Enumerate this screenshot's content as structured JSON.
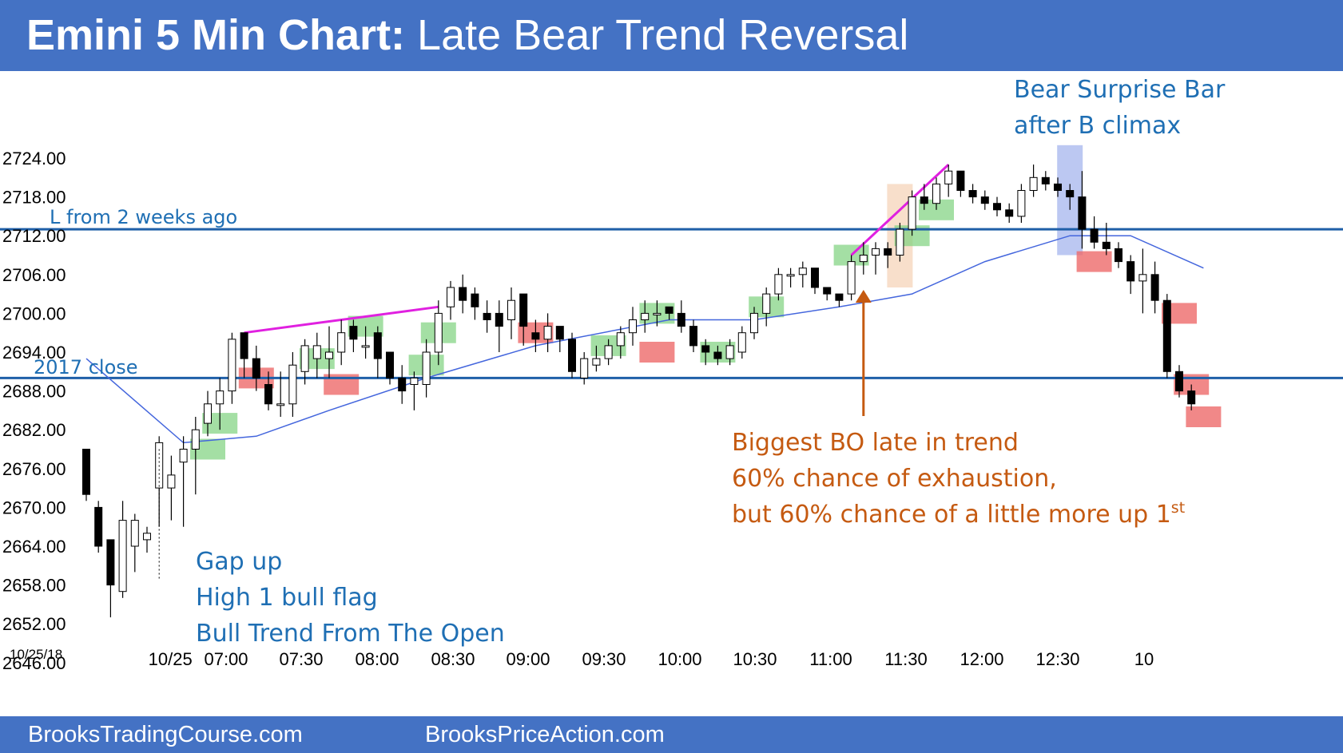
{
  "header": {
    "title_bold": "Emini 5 Min Chart:",
    "title_rest": "Late Bear Trend Reversal"
  },
  "footer": {
    "left": "BrooksTradingCourse.com",
    "right": "BrooksPriceAction.com"
  },
  "colors": {
    "header_bg": "#4472c4",
    "bull_box": "#7ed27e",
    "bear_box": "#ee6a6a",
    "ema_line": "#4466dd",
    "support_line": "#1f5fa8",
    "trendline": "#e020e0",
    "annotation_blue": "#1f6fb4",
    "annotation_orange": "#c55a11"
  },
  "chart_data": {
    "type": "candlestick",
    "date_label": "10/25/18",
    "y_ticks": [
      2724,
      2718,
      2712,
      2706,
      2700,
      2694,
      2688,
      2682,
      2676,
      2670,
      2664,
      2658,
      2652,
      2646
    ],
    "y_tick_labels": [
      "2724.00",
      "2718.00",
      "2712.00",
      "2706.00",
      "2700.00",
      "2694.00",
      "2688.00",
      "2682.00",
      "2676.00",
      "2670.00",
      "2664.00",
      "2658.00",
      "2652.00",
      "2646.00"
    ],
    "x_labels": [
      "10/25",
      "07:00",
      "07:30",
      "08:00",
      "08:30",
      "09:00",
      "09:30",
      "10:00",
      "10:30",
      "11:00",
      "11:30",
      "12:00",
      "12:30",
      "10"
    ],
    "ylim": [
      2643,
      2733
    ],
    "candles": [
      [
        2679,
        2679,
        2671,
        2672
      ],
      [
        2670,
        2671,
        2663,
        2664
      ],
      [
        2665,
        2665,
        2653,
        2658
      ],
      [
        2657,
        2671,
        2656,
        2668
      ],
      [
        2664,
        2669,
        2660,
        2668
      ],
      [
        2665,
        2667,
        2663,
        2666
      ],
      [
        2673,
        2681,
        2667,
        2680
      ],
      [
        2673,
        2678,
        2668,
        2675
      ],
      [
        2677,
        2681,
        2667,
        2679
      ],
      [
        2679,
        2684,
        2672,
        2682
      ],
      [
        2683,
        2688,
        2681,
        2686
      ],
      [
        2686,
        2690,
        2682,
        2688
      ],
      [
        2688,
        2697,
        2686,
        2696
      ],
      [
        2697,
        2697,
        2690,
        2693
      ],
      [
        2693,
        2695,
        2688,
        2690
      ],
      [
        2689,
        2691,
        2685,
        2686
      ],
      [
        2686,
        2691,
        2684,
        2686
      ],
      [
        2686,
        2694,
        2684,
        2692
      ],
      [
        2691,
        2696,
        2689,
        2695
      ],
      [
        2693,
        2697,
        2690,
        2695
      ],
      [
        2693,
        2698,
        2690,
        2694
      ],
      [
        2694,
        2699,
        2692,
        2697
      ],
      [
        2698,
        2699,
        2694,
        2696
      ],
      [
        2695,
        2698,
        2693,
        2695
      ],
      [
        2697,
        2698,
        2690,
        2693
      ],
      [
        2694,
        2694,
        2689,
        2690
      ],
      [
        2690,
        2692,
        2686,
        2688
      ],
      [
        2689,
        2691,
        2685,
        2690
      ],
      [
        2689,
        2696,
        2687,
        2694
      ],
      [
        2694,
        2702,
        2692,
        2700
      ],
      [
        2701,
        2705,
        2699,
        2704
      ],
      [
        2704,
        2706,
        2700,
        2702
      ],
      [
        2703,
        2704,
        2699,
        2701
      ],
      [
        2700,
        2702,
        2697,
        2699
      ],
      [
        2700,
        2702,
        2694,
        2698
      ],
      [
        2699,
        2704,
        2696,
        2702
      ],
      [
        2703,
        2703,
        2695,
        2698
      ],
      [
        2697,
        2699,
        2694,
        2696
      ],
      [
        2696,
        2700,
        2694,
        2698
      ],
      [
        2698,
        2698,
        2694,
        2696
      ],
      [
        2696,
        2697,
        2690,
        2691
      ],
      [
        2690,
        2694,
        2689,
        2693
      ],
      [
        2692,
        2695,
        2691,
        2693
      ],
      [
        2693,
        2696,
        2692,
        2695
      ],
      [
        2695,
        2698,
        2693,
        2697
      ],
      [
        2697,
        2701,
        2695,
        2699
      ],
      [
        2699,
        2702,
        2697,
        2700
      ],
      [
        2700,
        2702,
        2698,
        2700
      ],
      [
        2701,
        2701,
        2699,
        2700
      ],
      [
        2700,
        2702,
        2697,
        2698
      ],
      [
        2698,
        2699,
        2694,
        2695
      ],
      [
        2695,
        2696,
        2692,
        2694
      ],
      [
        2694,
        2695,
        2692,
        2693
      ],
      [
        2693,
        2696,
        2692,
        2695
      ],
      [
        2694,
        2698,
        2693,
        2697
      ],
      [
        2697,
        2701,
        2696,
        2700
      ],
      [
        2700,
        2704,
        2698,
        2703
      ],
      [
        2703,
        2707,
        2702,
        2706
      ],
      [
        2706,
        2707,
        2704,
        2706
      ],
      [
        2706,
        2708,
        2704,
        2707
      ],
      [
        2707,
        2707,
        2703,
        2704
      ],
      [
        2704,
        2704,
        2702,
        2703
      ],
      [
        2703,
        2703,
        2701,
        2702
      ],
      [
        2703,
        2709,
        2702,
        2708
      ],
      [
        2708,
        2711,
        2706,
        2709
      ],
      [
        2709,
        2711,
        2706,
        2710
      ],
      [
        2710,
        2711,
        2707,
        2709
      ],
      [
        2709,
        2714,
        2708,
        2713
      ],
      [
        2713,
        2719,
        2712,
        2718
      ],
      [
        2718,
        2720,
        2716,
        2717
      ],
      [
        2717,
        2721,
        2716,
        2720
      ],
      [
        2720,
        2723,
        2718,
        2722
      ],
      [
        2722,
        2722,
        2718,
        2719
      ],
      [
        2719,
        2720,
        2717,
        2718
      ],
      [
        2718,
        2719,
        2716,
        2717
      ],
      [
        2717,
        2718,
        2715,
        2716
      ],
      [
        2716,
        2717,
        2714,
        2715
      ],
      [
        2715,
        2720,
        2714,
        2719
      ],
      [
        2719,
        2723,
        2718,
        2721
      ],
      [
        2721,
        2722,
        2719,
        2720
      ],
      [
        2720,
        2721,
        2718,
        2719
      ],
      [
        2719,
        2720,
        2716,
        2718
      ],
      [
        2718,
        2722,
        2710,
        2713
      ],
      [
        2713,
        2715,
        2710,
        2711
      ],
      [
        2711,
        2714,
        2709,
        2710
      ],
      [
        2710,
        2711,
        2707,
        2708
      ],
      [
        2708,
        2709,
        2703,
        2705
      ],
      [
        2705,
        2710,
        2700,
        2706
      ],
      [
        2706,
        2708,
        2700,
        2702
      ],
      [
        2702,
        2703,
        2690,
        2691
      ],
      [
        2691,
        2692,
        2687,
        2688
      ],
      [
        2688,
        2689,
        2685,
        2686
      ]
    ],
    "ema_points": [
      [
        2693,
        0
      ],
      [
        2680,
        8
      ],
      [
        2681,
        14
      ],
      [
        2685,
        20
      ],
      [
        2690,
        28
      ],
      [
        2695,
        37
      ],
      [
        2699,
        48
      ],
      [
        2699,
        55
      ],
      [
        2701,
        62
      ],
      [
        2703,
        68
      ],
      [
        2708,
        74
      ],
      [
        2712,
        81
      ],
      [
        2712,
        86
      ],
      [
        2707,
        92
      ]
    ],
    "horizontal_lines": [
      {
        "label": "L from 2 weeks ago",
        "value": 2713
      },
      {
        "label": "2017 close",
        "value": 2690
      }
    ],
    "trendlines": [
      {
        "from": [
          2697,
          13
        ],
        "to": [
          2701,
          29
        ]
      },
      {
        "from": [
          2709,
          63
        ],
        "to": [
          2723,
          71
        ]
      }
    ],
    "bull_boxes": [
      [
        2679,
        10
      ],
      [
        2683,
        11
      ],
      [
        2693,
        19
      ],
      [
        2698,
        23
      ],
      [
        2697,
        29
      ],
      [
        2692,
        28
      ],
      [
        2695,
        43
      ],
      [
        2700,
        47
      ],
      [
        2694,
        52
      ],
      [
        2701,
        56
      ],
      [
        2709,
        63
      ],
      [
        2712,
        68
      ],
      [
        2716,
        70
      ]
    ],
    "bear_boxes": [
      [
        2690,
        14
      ],
      [
        2689,
        21
      ],
      [
        2697,
        37
      ],
      [
        2694,
        47
      ],
      [
        2708,
        83
      ],
      [
        2700,
        90
      ],
      [
        2689,
        91
      ],
      [
        2684,
        92
      ]
    ],
    "highlights": [
      {
        "type": "surprise_bar",
        "center": 81,
        "ylim": [
          2709,
          2726
        ]
      },
      {
        "type": "breakout",
        "center": 67,
        "ylim": [
          2704,
          2720
        ]
      }
    ],
    "annotations": {
      "gap_up": [
        "Gap up",
        "High 1 bull flag",
        "Bull Trend From The Open"
      ],
      "surprise": [
        "Bear Surprise Bar",
        "after B climax"
      ],
      "biggest_bo_1": "Biggest BO late in trend",
      "biggest_bo_2": "60% chance of exhaustion,",
      "biggest_bo_3": "but 60% chance of a little more up 1",
      "biggest_bo_sup": "st"
    }
  }
}
